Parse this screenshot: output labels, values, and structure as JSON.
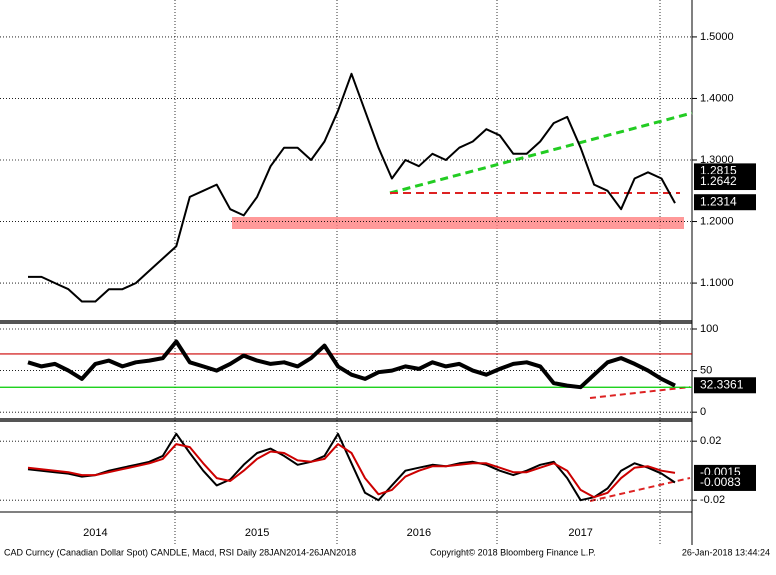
{
  "chart_data": [
    {
      "type": "line",
      "ylim": [
        1.04,
        1.56
      ],
      "yticks": [
        {
          "value": 1.1,
          "label": "1.1000"
        },
        {
          "value": 1.2,
          "label": "1.2000"
        },
        {
          "value": 1.3,
          "label": "1.3000"
        },
        {
          "value": 1.4,
          "label": "1.4000"
        },
        {
          "value": 1.5,
          "label": "1.5000"
        }
      ],
      "grid": true,
      "series": [
        {
          "color": "#000000",
          "values": [
            1.11,
            1.11,
            1.1,
            1.09,
            1.07,
            1.07,
            1.09,
            1.09,
            1.1,
            1.12,
            1.14,
            1.16,
            1.24,
            1.25,
            1.26,
            1.22,
            1.21,
            1.24,
            1.29,
            1.32,
            1.32,
            1.3,
            1.33,
            1.38,
            1.44,
            1.38,
            1.32,
            1.27,
            1.3,
            1.29,
            1.31,
            1.3,
            1.32,
            1.33,
            1.35,
            1.34,
            1.31,
            1.31,
            1.33,
            1.36,
            1.37,
            1.32,
            1.26,
            1.25,
            1.22,
            1.27,
            1.28,
            1.27,
            1.23
          ]
        }
      ],
      "price_labels": [
        1.2815,
        1.2642,
        1.2314
      ]
    },
    {
      "type": "line",
      "ylim": [
        -7,
        106
      ],
      "yticks": [
        0,
        50,
        100
      ],
      "grid": true,
      "reference_lines": [
        {
          "value": 70,
          "color": "#cc0000"
        },
        {
          "value": 30,
          "color": "#00cc00"
        }
      ],
      "series": [
        {
          "color": "#000000",
          "values": [
            60,
            55,
            58,
            50,
            40,
            58,
            62,
            55,
            60,
            62,
            65,
            85,
            60,
            55,
            50,
            58,
            68,
            62,
            58,
            60,
            55,
            65,
            80,
            55,
            45,
            40,
            48,
            50,
            55,
            52,
            60,
            55,
            58,
            50,
            45,
            52,
            58,
            60,
            55,
            35,
            32,
            30,
            45,
            60,
            65,
            58,
            50,
            40,
            32
          ]
        }
      ],
      "price_labels": [
        32.3361
      ]
    },
    {
      "type": "line",
      "ylim": [
        -0.028,
        0.033
      ],
      "yticks": [
        0.02,
        -0.02
      ],
      "grid": true,
      "categories": [
        null,
        null,
        null,
        null,
        null,
        "2014",
        null,
        null,
        null,
        null,
        null,
        null,
        null,
        null,
        null,
        null,
        null,
        "2015",
        null,
        null,
        null,
        null,
        null,
        null,
        null,
        null,
        null,
        null,
        null,
        "2016",
        null,
        null,
        null,
        null,
        null,
        null,
        null,
        null,
        null,
        null,
        null,
        "2017",
        null,
        null,
        null,
        null,
        null,
        null,
        null
      ],
      "series": [
        {
          "color": "#000000",
          "values": [
            0.001,
            0.0,
            -0.001,
            -0.002,
            -0.004,
            -0.003,
            0.0,
            0.002,
            0.004,
            0.006,
            0.01,
            0.025,
            0.012,
            0.0,
            -0.01,
            -0.006,
            0.004,
            0.012,
            0.015,
            0.01,
            0.004,
            0.006,
            0.01,
            0.025,
            0.005,
            -0.015,
            -0.02,
            -0.01,
            0.0,
            0.002,
            0.004,
            0.003,
            0.005,
            0.006,
            0.004,
            0.0,
            -0.003,
            0.0,
            0.004,
            0.006,
            -0.005,
            -0.02,
            -0.018,
            -0.012,
            0.0,
            0.005,
            0.002,
            -0.002,
            -0.008
          ]
        },
        {
          "color": "#cc0000",
          "values": [
            0.002,
            0.001,
            0.0,
            -0.001,
            -0.003,
            -0.003,
            -0.001,
            0.001,
            0.003,
            0.005,
            0.008,
            0.018,
            0.016,
            0.005,
            -0.005,
            -0.007,
            0.0,
            0.008,
            0.013,
            0.012,
            0.007,
            0.006,
            0.008,
            0.018,
            0.012,
            -0.005,
            -0.016,
            -0.013,
            -0.004,
            0.0,
            0.003,
            0.003,
            0.004,
            0.005,
            0.005,
            0.002,
            -0.001,
            -0.001,
            0.002,
            0.005,
            0.0,
            -0.013,
            -0.018,
            -0.015,
            -0.005,
            0.002,
            0.003,
            0.0,
            -0.0015
          ]
        }
      ],
      "price_labels": [
        -0.0015,
        -0.0083
      ]
    }
  ],
  "footer": {
    "left": "CAD Curncy (Canadian Dollar Spot) CANDLE, Macd, RSI  Daily 28JAN2014-26JAN2018",
    "center": "Copyright© 2018 Bloomberg Finance L.P.",
    "right": "26-Jan-2018 13:44:24"
  }
}
